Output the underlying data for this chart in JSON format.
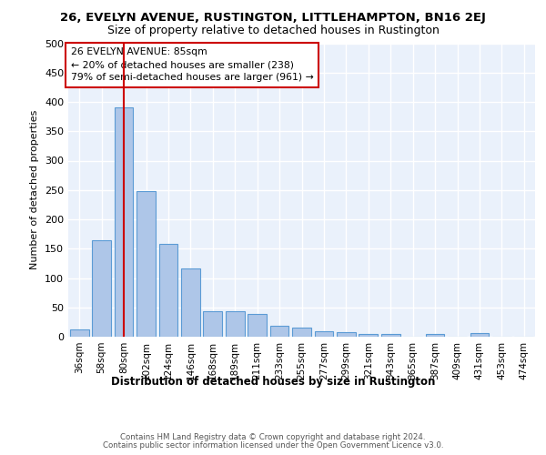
{
  "title": "26, EVELYN AVENUE, RUSTINGTON, LITTLEHAMPTON, BN16 2EJ",
  "subtitle": "Size of property relative to detached houses in Rustington",
  "xlabel": "Distribution of detached houses by size in Rustington",
  "ylabel": "Number of detached properties",
  "categories": [
    "36sqm",
    "58sqm",
    "80sqm",
    "102sqm",
    "124sqm",
    "146sqm",
    "168sqm",
    "189sqm",
    "211sqm",
    "233sqm",
    "255sqm",
    "277sqm",
    "299sqm",
    "321sqm",
    "343sqm",
    "365sqm",
    "387sqm",
    "409sqm",
    "431sqm",
    "453sqm",
    "474sqm"
  ],
  "values": [
    13,
    165,
    390,
    248,
    158,
    117,
    43,
    43,
    38,
    19,
    15,
    9,
    7,
    5,
    5,
    0,
    5,
    0,
    6,
    0,
    0
  ],
  "bar_color": "#aec6e8",
  "bar_edge_color": "#5b9bd5",
  "red_line_x": 2,
  "annotation_text": "26 EVELYN AVENUE: 85sqm\n← 20% of detached houses are smaller (238)\n79% of semi-detached houses are larger (961) →",
  "annotation_box_color": "#ffffff",
  "annotation_box_edge": "#cc0000",
  "bg_color": "#eaf1fb",
  "grid_color": "#ffffff",
  "ylim": [
    0,
    500
  ],
  "yticks": [
    0,
    50,
    100,
    150,
    200,
    250,
    300,
    350,
    400,
    450,
    500
  ],
  "footer_line1": "Contains HM Land Registry data © Crown copyright and database right 2024.",
  "footer_line2": "Contains public sector information licensed under the Open Government Licence v3.0."
}
